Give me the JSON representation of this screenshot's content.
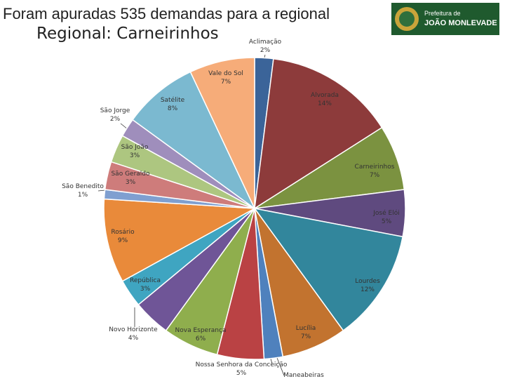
{
  "chart_data": {
    "type": "pie",
    "title": "Foram apuradas 535 demandas para a regional",
    "subtitle": "Regional: Carneirinhos",
    "categories": [
      "Aclimação",
      "Alvorada",
      "Carneirinhos",
      "José Elói",
      "Lourdes",
      "Lucília",
      "Maneabeiras",
      "Nossa Senhora da Conceição",
      "Nova Esperança",
      "Novo Horizonte",
      "República",
      "Rosário",
      "São Benedito",
      "São Geraldo",
      "São João",
      "São Jorge",
      "Satélite",
      "Vale do Sol"
    ],
    "values": [
      2,
      14,
      7,
      5,
      12,
      7,
      2,
      5,
      6,
      4,
      3,
      9,
      1,
      3,
      3,
      2,
      8,
      7
    ],
    "value_labels": [
      "2%",
      "14%",
      "7%",
      "5%",
      "12%",
      "7%",
      null,
      "5%",
      "6%",
      "4%",
      "3%",
      "9%",
      "1%",
      "3%",
      "3%",
      "2%",
      "8%",
      "7%"
    ],
    "colors": [
      "#3b6499",
      "#8d3b3b",
      "#7b9240",
      "#5f4a7f",
      "#32869c",
      "#c2732f",
      "#4f81bd",
      "#ba4244",
      "#8fae4d",
      "#6f5597",
      "#3fa5c1",
      "#e98a3a",
      "#7f9fd0",
      "#ce7c7b",
      "#adc680",
      "#9f8ebc",
      "#7bb9d0",
      "#f6ac79"
    ]
  },
  "logo": {
    "line1": "Prefeitura de",
    "line2": "JOÃO MONLEVADE"
  }
}
